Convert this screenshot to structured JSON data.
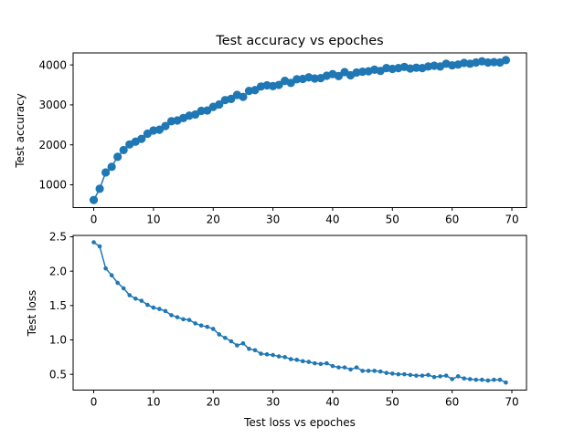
{
  "figure": {
    "background": "#ffffff",
    "line_color": "#1f77b4"
  },
  "chart_data": [
    {
      "type": "line",
      "title": "Test accuracy vs epoches",
      "xlabel": "",
      "ylabel": "Test accuracy",
      "xlim": [
        -3.45,
        72.45
      ],
      "ylim": [
        430,
        4300
      ],
      "xticks": [
        0,
        10,
        20,
        30,
        40,
        50,
        60,
        70
      ],
      "yticks": [
        1000,
        2000,
        3000,
        4000
      ],
      "xtick_labels": [
        "0",
        "10",
        "20",
        "30",
        "40",
        "50",
        "60",
        "70"
      ],
      "ytick_labels": [
        "1000",
        "2000",
        "3000",
        "4000"
      ],
      "marker": "large-circle",
      "grid": false,
      "x": [
        0,
        1,
        2,
        3,
        4,
        5,
        6,
        7,
        8,
        9,
        10,
        11,
        12,
        13,
        14,
        15,
        16,
        17,
        18,
        19,
        20,
        21,
        22,
        23,
        24,
        25,
        26,
        27,
        28,
        29,
        30,
        31,
        32,
        33,
        34,
        35,
        36,
        37,
        38,
        39,
        40,
        41,
        42,
        43,
        44,
        45,
        46,
        47,
        48,
        49,
        50,
        51,
        52,
        53,
        54,
        55,
        56,
        57,
        58,
        59,
        60,
        61,
        62,
        63,
        64,
        65,
        66,
        67,
        68,
        69
      ],
      "series": [
        {
          "values": [
            620,
            900,
            1310,
            1450,
            1700,
            1870,
            2010,
            2080,
            2150,
            2280,
            2360,
            2380,
            2470,
            2590,
            2610,
            2670,
            2730,
            2760,
            2850,
            2860,
            2950,
            3010,
            3120,
            3150,
            3250,
            3200,
            3350,
            3370,
            3460,
            3490,
            3470,
            3500,
            3600,
            3550,
            3640,
            3650,
            3690,
            3660,
            3670,
            3730,
            3770,
            3720,
            3820,
            3740,
            3810,
            3830,
            3840,
            3880,
            3850,
            3920,
            3900,
            3920,
            3950,
            3910,
            3930,
            3920,
            3960,
            3980,
            3960,
            4030,
            3990,
            4010,
            4050,
            4030,
            4060,
            4090,
            4060,
            4070,
            4060,
            4120
          ]
        }
      ]
    },
    {
      "type": "line",
      "title": "",
      "xlabel": "Test loss vs epoches",
      "ylabel": "Test loss",
      "xlim": [
        -3.45,
        72.45
      ],
      "ylim": [
        0.27,
        2.52
      ],
      "xticks": [
        0,
        10,
        20,
        30,
        40,
        50,
        60,
        70
      ],
      "yticks": [
        0.5,
        1.0,
        1.5,
        2.0,
        2.5
      ],
      "xtick_labels": [
        "0",
        "10",
        "20",
        "30",
        "40",
        "50",
        "60",
        "70"
      ],
      "ytick_labels": [
        "0.5",
        "1.0",
        "1.5",
        "2.0",
        "2.5"
      ],
      "marker": "small-circle",
      "grid": false,
      "x": [
        0,
        1,
        2,
        3,
        4,
        5,
        6,
        7,
        8,
        9,
        10,
        11,
        12,
        13,
        14,
        15,
        16,
        17,
        18,
        19,
        20,
        21,
        22,
        23,
        24,
        25,
        26,
        27,
        28,
        29,
        30,
        31,
        32,
        33,
        34,
        35,
        36,
        37,
        38,
        39,
        40,
        41,
        42,
        43,
        44,
        45,
        46,
        47,
        48,
        49,
        50,
        51,
        52,
        53,
        54,
        55,
        56,
        57,
        58,
        59,
        60,
        61,
        62,
        63,
        64,
        65,
        66,
        67,
        68,
        69
      ],
      "series": [
        {
          "values": [
            2.42,
            2.36,
            2.04,
            1.94,
            1.83,
            1.75,
            1.65,
            1.6,
            1.57,
            1.51,
            1.47,
            1.45,
            1.42,
            1.36,
            1.33,
            1.3,
            1.29,
            1.24,
            1.21,
            1.19,
            1.16,
            1.08,
            1.03,
            0.98,
            0.92,
            0.95,
            0.87,
            0.85,
            0.8,
            0.79,
            0.78,
            0.76,
            0.75,
            0.72,
            0.71,
            0.69,
            0.68,
            0.66,
            0.65,
            0.66,
            0.62,
            0.6,
            0.6,
            0.57,
            0.6,
            0.55,
            0.55,
            0.55,
            0.54,
            0.52,
            0.51,
            0.5,
            0.5,
            0.49,
            0.48,
            0.48,
            0.49,
            0.46,
            0.47,
            0.48,
            0.43,
            0.47,
            0.44,
            0.43,
            0.42,
            0.42,
            0.41,
            0.42,
            0.42,
            0.38
          ]
        }
      ]
    }
  ]
}
